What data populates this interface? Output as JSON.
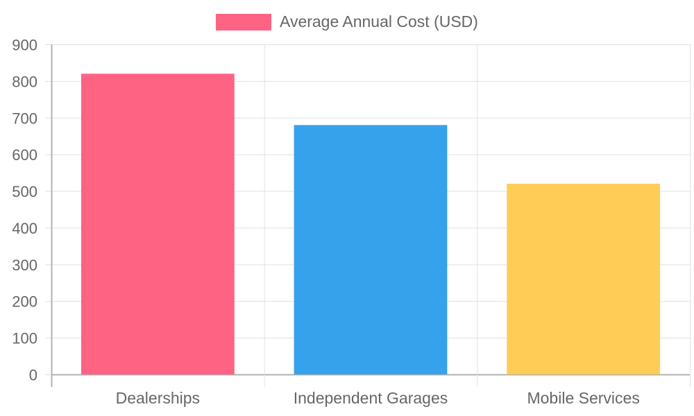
{
  "chart_data": {
    "type": "bar",
    "title": "",
    "categories": [
      "Dealerships",
      "Independent Garages",
      "Mobile Services"
    ],
    "series": [
      {
        "name": "Average Annual Cost (USD)",
        "values": [
          820,
          680,
          520
        ]
      }
    ],
    "bar_colors": [
      "#ff6384",
      "#36a2eb",
      "#ffcd56"
    ],
    "xlabel": "",
    "ylabel": "",
    "ylim": [
      0,
      900
    ],
    "yticks": [
      0,
      100,
      200,
      300,
      400,
      500,
      600,
      700,
      800,
      900
    ],
    "grid": true,
    "legend_position": "top"
  },
  "legend": {
    "label": "Average Annual Cost (USD)",
    "color": "#ff6384"
  }
}
